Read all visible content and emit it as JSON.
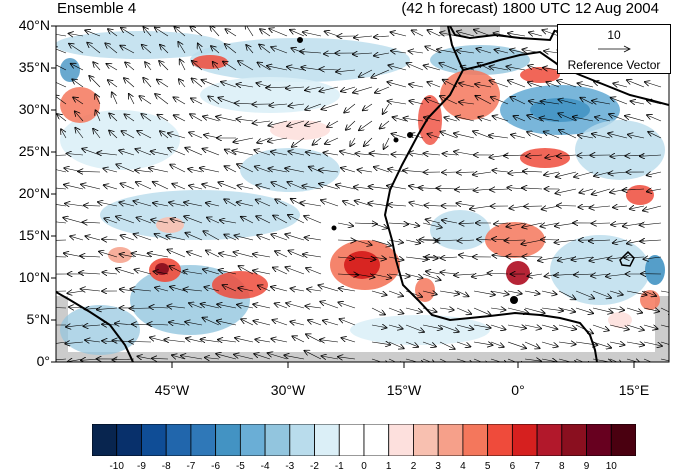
{
  "title_left": "Ensemble 4",
  "title_right": "(42 h forecast) 1800 UTC 12 Aug 2004",
  "lat_labels": [
    "40°N",
    "35°N",
    "30°N",
    "25°N",
    "20°N",
    "15°N",
    "10°N",
    "5°N",
    "0°"
  ],
  "lon_labels": [
    "45°W",
    "30°W",
    "15°W",
    "0°",
    "15°E"
  ],
  "reference_vector": {
    "magnitude": "10",
    "label": "Reference Vector"
  },
  "colorbar": {
    "labels": [
      "-10",
      "-9",
      "-8",
      "-7",
      "-6",
      "-5",
      "-4",
      "-3",
      "-2",
      "-1",
      "0",
      "1",
      "2",
      "3",
      "4",
      "5",
      "6",
      "7",
      "8",
      "9",
      "10"
    ],
    "colors": [
      "#08254f",
      "#08306b",
      "#0f4d96",
      "#2166ac",
      "#2f78b8",
      "#4393c3",
      "#6aaed6",
      "#92c5de",
      "#b9dcec",
      "#dbeff7",
      "#ffffff",
      "#ffffff",
      "#fde0dd",
      "#f8c0b0",
      "#f6a08a",
      "#f4775c",
      "#ef4b3b",
      "#d6201f",
      "#b2182b",
      "#8a0f1f",
      "#67001f",
      "#4a0010"
    ]
  },
  "colors": {
    "coastline": "#000000",
    "warm": "#d6201f",
    "cool": "#2166ac",
    "nodata": "#cccccc"
  }
}
